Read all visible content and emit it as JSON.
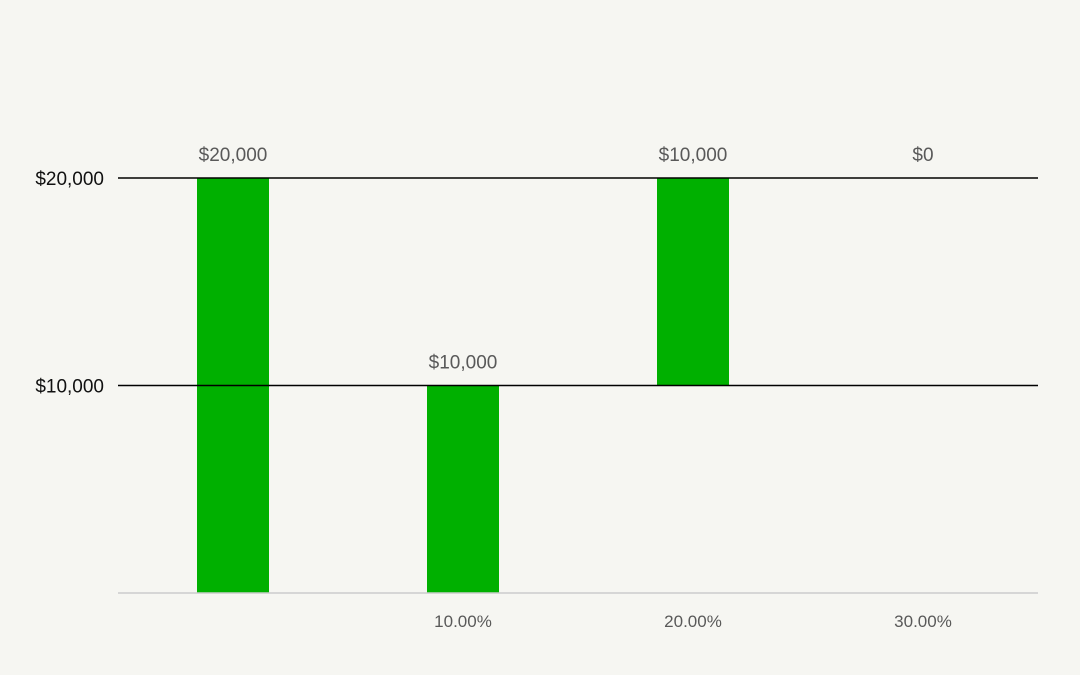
{
  "chart_data": {
    "type": "bar",
    "subtype": "waterfall",
    "categories": [
      "",
      "10.00%",
      "20.00%",
      "30.00%"
    ],
    "bars": [
      {
        "start": 0,
        "end": 20000,
        "label": "$20,000"
      },
      {
        "start": 0,
        "end": 10000,
        "label": "$10,000"
      },
      {
        "start": 10000,
        "end": 20000,
        "label": "$10,000"
      },
      {
        "start": 20000,
        "end": 20000,
        "label": "$0"
      }
    ],
    "y_ticks": [
      {
        "value": 10000,
        "label": "$10,000"
      },
      {
        "value": 20000,
        "label": "$20,000"
      }
    ],
    "ylim": [
      0,
      20000
    ],
    "grid": true,
    "legend": "none",
    "title": "",
    "xlabel": "",
    "ylabel": "",
    "colors": {
      "bar": "#00b000",
      "gridline": "#000000",
      "baseline": "#cccccc",
      "background": "#f6f6f2"
    }
  }
}
